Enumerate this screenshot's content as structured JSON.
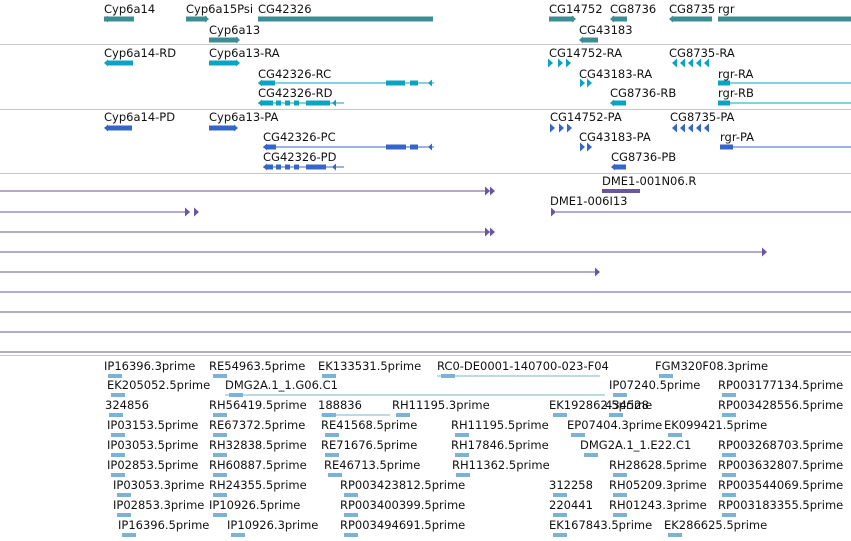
{
  "colors": {
    "background": "#ffffff",
    "separator": "#c8c8c8",
    "gene": "#3c8e92",
    "rna": "#0aa4c2",
    "protein": "#3665c8",
    "clone": "#6a56a0",
    "est": "#7ab3d6"
  },
  "tracks": {
    "genes": [
      {
        "label": "Cyp6a14",
        "color": "gene"
      },
      {
        "label": "Cyp6a15Psi",
        "color": "gene"
      },
      {
        "label": "CG42326",
        "color": "gene"
      },
      {
        "label": "Cyp6a13",
        "color": "gene"
      },
      {
        "label": "CG14752",
        "color": "gene"
      },
      {
        "label": "CG8736",
        "color": "gene"
      },
      {
        "label": "CG8735",
        "color": "gene"
      },
      {
        "label": "rgr",
        "color": "gene"
      },
      {
        "label": "CG43183",
        "color": "gene"
      }
    ],
    "transcripts": [
      {
        "label": "Cyp6a14-RD"
      },
      {
        "label": "Cyp6a13-RA"
      },
      {
        "label": "CG42326-RC"
      },
      {
        "label": "CG42326-RD"
      },
      {
        "label": "CG14752-RA"
      },
      {
        "label": "CG8735-RA"
      },
      {
        "label": "CG43183-RA"
      },
      {
        "label": "rgr-RA"
      },
      {
        "label": "CG8736-RB"
      },
      {
        "label": "rgr-RB"
      }
    ],
    "proteins": [
      {
        "label": "Cyp6a14-PD"
      },
      {
        "label": "Cyp6a13-PA"
      },
      {
        "label": "CG42326-PC"
      },
      {
        "label": "CG42326-PD"
      },
      {
        "label": "CG14752-PA"
      },
      {
        "label": "CG8735-PA"
      },
      {
        "label": "CG43183-PA"
      },
      {
        "label": "rgr-PA"
      },
      {
        "label": "CG8736-PB"
      }
    ],
    "clones": [
      {
        "label": "DME1-001N06.R"
      },
      {
        "label": "DME1-006I13"
      }
    ],
    "ests": [
      "IP16396.3prime",
      "RE54963.5prime",
      "EK133531.5prime",
      "RC0-DE0001-140700-023-F04",
      "FGM320F08.3prime",
      "EK205052.5prime",
      "DMG2A.1_1.G06.C1",
      "IP07240.5prime",
      "RP003177134.5prime",
      "324856",
      "RH56419.5prime",
      "188836",
      "RH11195.3prime",
      "EK192862.5prime",
      "434528",
      "RP003428556.5prime",
      "IP03153.5prime",
      "RE67372.5prime",
      "RE41568.5prime",
      "RH11195.5prime",
      "EP07404.3prime",
      "EK099421.5prime",
      "IP03053.5prime",
      "RH32838.5prime",
      "RE71676.5prime",
      "RH17846.5prime",
      "DMG2A.1_1.E22.C1",
      "RP003268703.5prime",
      "IP02853.5prime",
      "RH60887.5prime",
      "RE46713.5prime",
      "RH11362.5prime",
      "RH28628.5prime",
      "RP003632807.5prime",
      "IP03053.3prime",
      "RH24355.5prime",
      "RP003423812.5prime",
      "312258",
      "RH05209.3prime",
      "RP003544069.5prime",
      "IP02853.3prime",
      "IP10926.5prime",
      "RP003400399.5prime",
      "220441",
      "RH01243.3prime",
      "RP003183355.5prime",
      "IP16396.5prime",
      "IP10926.3prime",
      "RP003494691.5prime",
      "EK167843.5prime",
      "EK286625.5prime"
    ]
  }
}
